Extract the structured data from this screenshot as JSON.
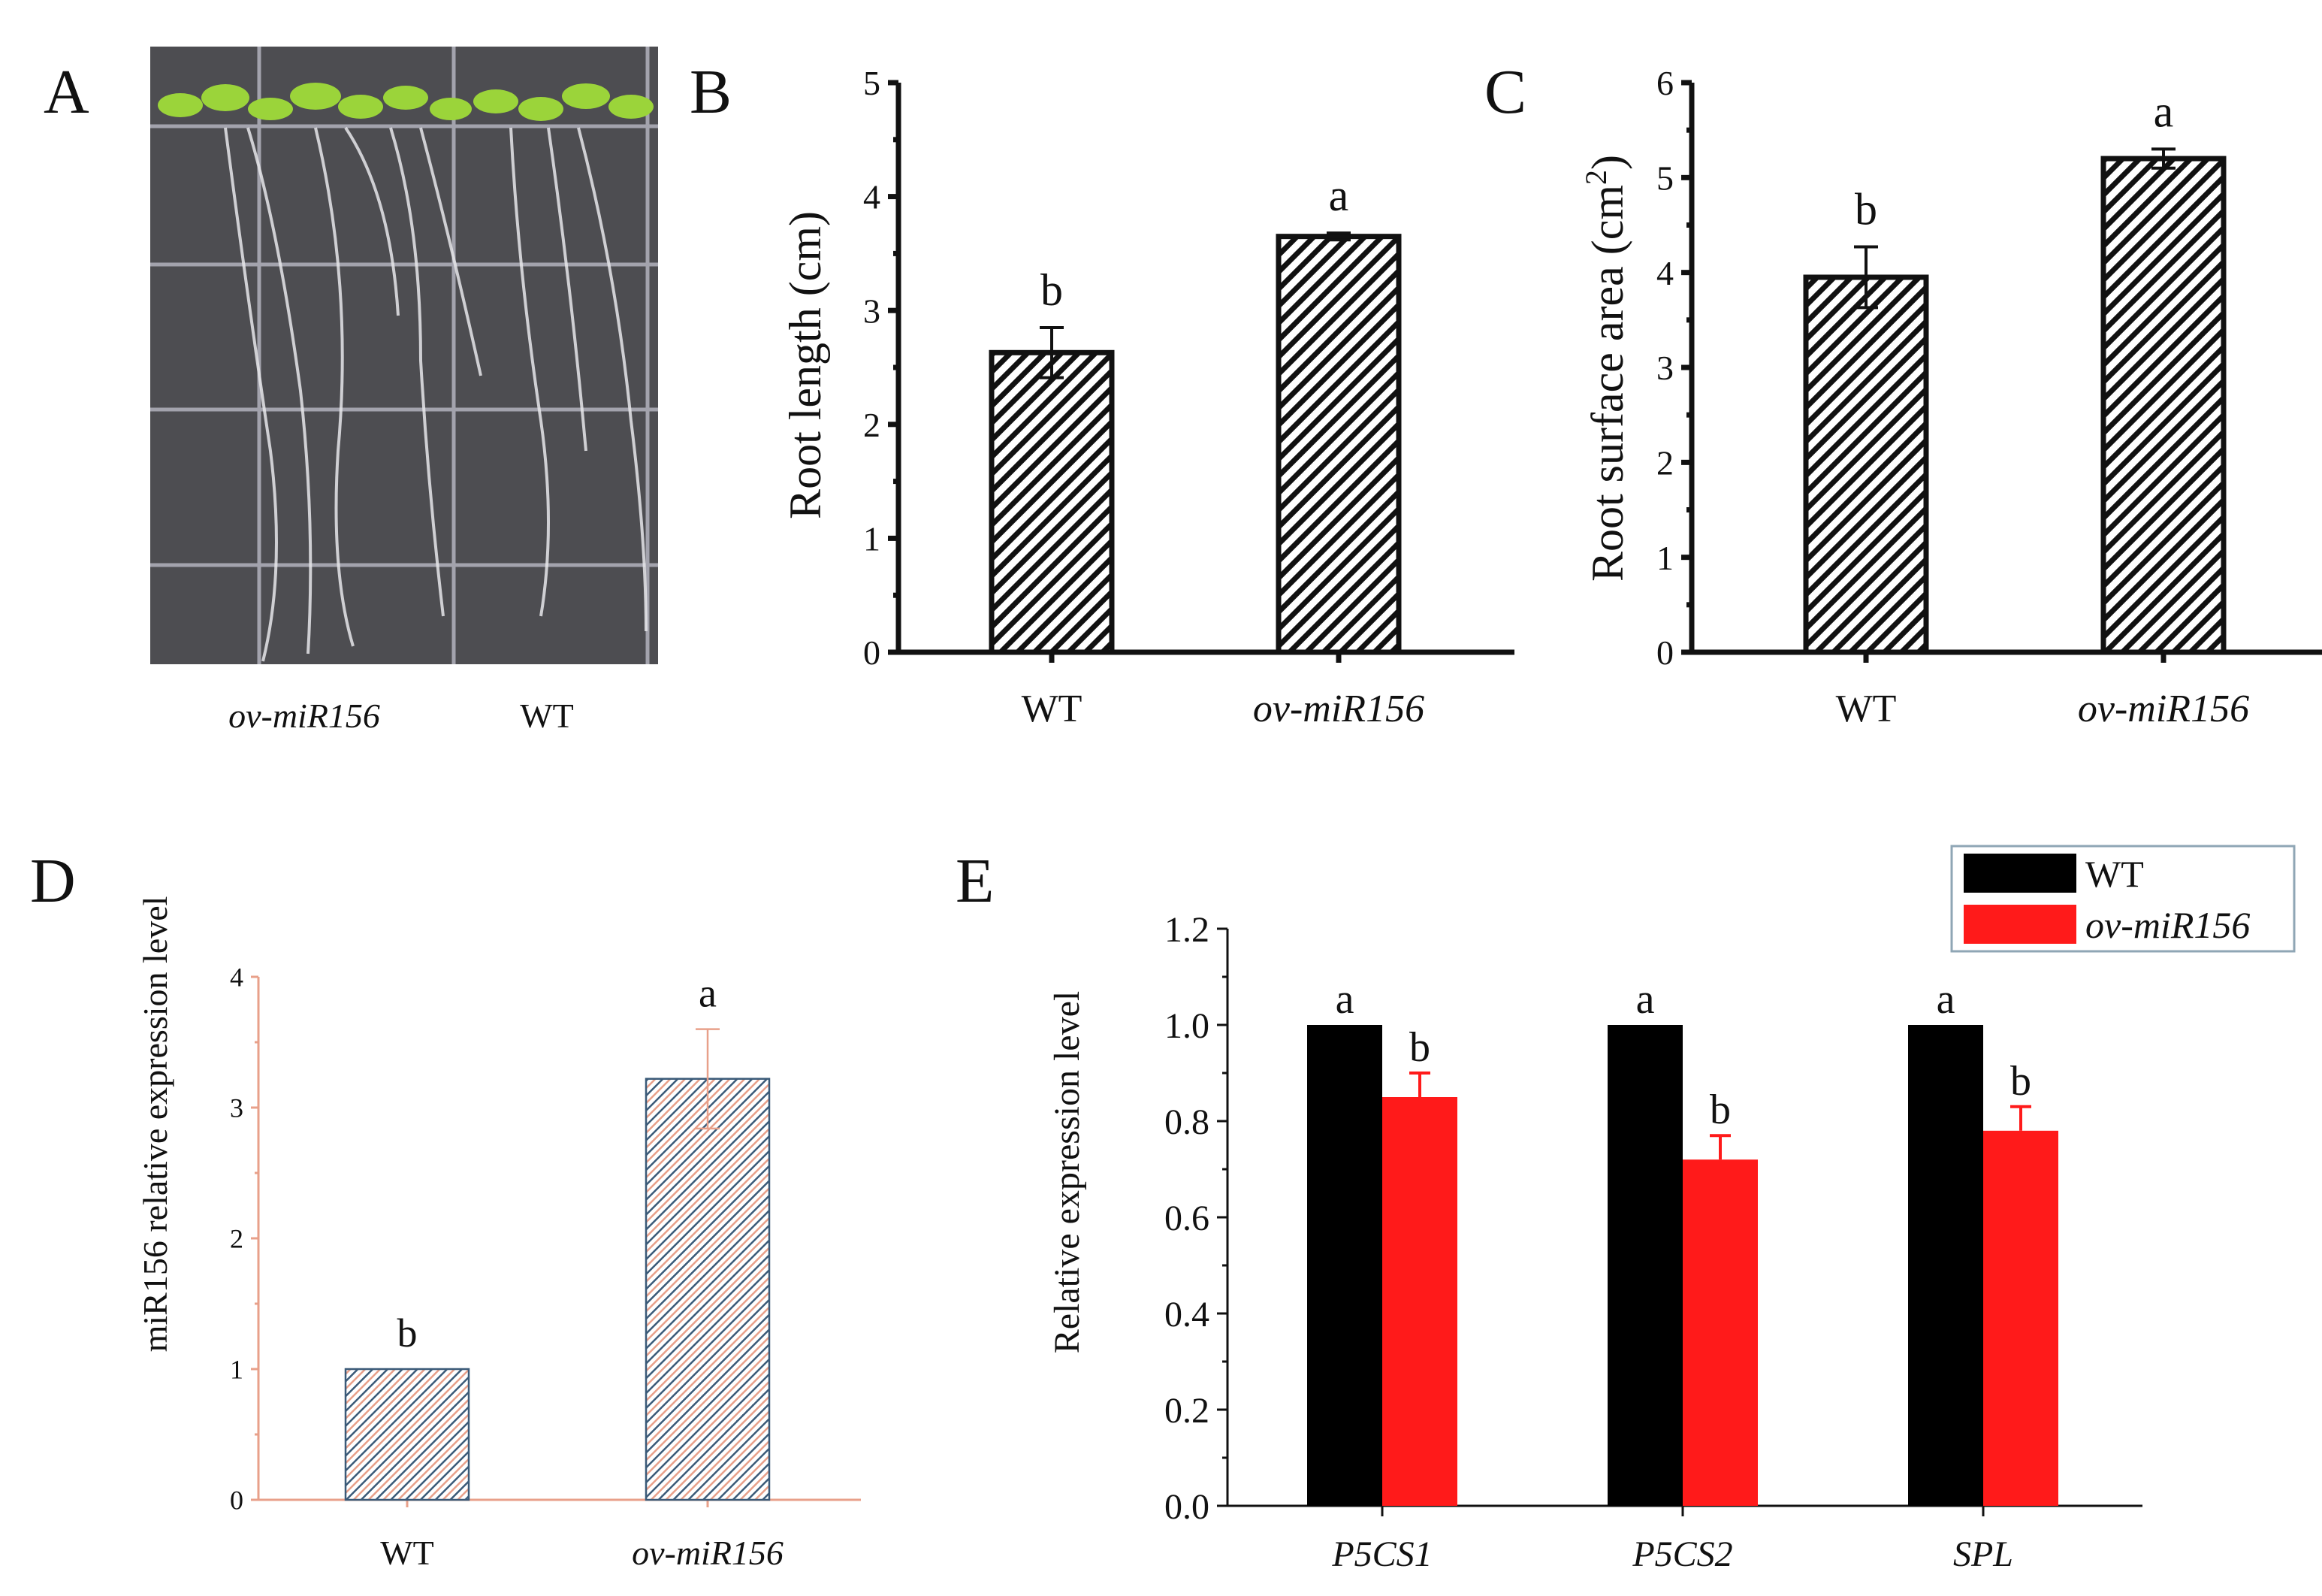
{
  "colors": {
    "wt": "#000000",
    "ov": "#ff1a1a",
    "hatch": "#111111",
    "hatch_light_a": "#3b5a78",
    "hatch_light_b": "#e8a08a",
    "axis_light": "#e8a08a",
    "photo_bg": "#4d4d51",
    "grid_line": "#b9b9c4",
    "leaf": "#9bd43a",
    "root": "#e6e6ea"
  },
  "panel_a": {
    "label": "A",
    "image_description": "Seedlings on agar plate showing root growth",
    "captions": [
      "ov-miR156",
      "WT"
    ]
  },
  "chart_data": [
    {
      "panel": "B",
      "type": "bar",
      "title": "",
      "xlabel": "",
      "ylabel": "Root length (cm)",
      "categories": [
        "WT",
        "ov-miR156"
      ],
      "values": [
        2.63,
        3.65
      ],
      "errors": [
        0.22,
        0.03
      ],
      "letters": [
        "b",
        "a"
      ],
      "ylim": [
        0,
        5
      ],
      "yticks": [
        "0",
        "1",
        "2",
        "3",
        "4",
        "5"
      ],
      "style": "hatched"
    },
    {
      "panel": "C",
      "type": "bar",
      "title": "",
      "xlabel": "",
      "ylabel": "Root surface area (cm2)",
      "ylabel_main": "Root surface area (cm",
      "ylabel_sup": "2",
      "ylabel_end": ")",
      "categories": [
        "WT",
        "ov-miR156"
      ],
      "values": [
        3.95,
        5.2
      ],
      "errors": [
        0.32,
        0.1
      ],
      "letters": [
        "b",
        "a"
      ],
      "ylim": [
        0,
        6
      ],
      "yticks": [
        "0",
        "1",
        "2",
        "3",
        "4",
        "5",
        "6"
      ],
      "style": "hatched"
    },
    {
      "panel": "D",
      "type": "bar",
      "title": "",
      "xlabel": "",
      "ylabel": "miR156 relative expression level",
      "categories": [
        "WT",
        "ov-miR156"
      ],
      "values": [
        1.0,
        3.22
      ],
      "errors": [
        0,
        0.38
      ],
      "letters": [
        "b",
        "a"
      ],
      "ylim": [
        0,
        4
      ],
      "yticks": [
        "0",
        "1",
        "2",
        "3",
        "4"
      ],
      "style": "hatched-light"
    },
    {
      "panel": "E",
      "type": "bar",
      "title": "",
      "xlabel": "",
      "ylabel": "Relative expression level",
      "categories": [
        "P5CS1",
        "P5CS2",
        "SPL"
      ],
      "series": [
        {
          "name": "WT",
          "values": [
            1.0,
            1.0,
            1.0
          ],
          "errors": [
            0,
            0,
            0
          ],
          "letters": [
            "a",
            "a",
            "a"
          ]
        },
        {
          "name": "ov-miR156",
          "values": [
            0.85,
            0.72,
            0.78
          ],
          "errors": [
            0.05,
            0.05,
            0.05
          ],
          "letters": [
            "b",
            "b",
            "b"
          ]
        }
      ],
      "ylim": [
        0,
        1.2
      ],
      "yticks": [
        "0.0",
        "0.2",
        "0.4",
        "0.6",
        "0.8",
        "1.0",
        "1.2"
      ],
      "legend": {
        "position": "top-right",
        "entries": [
          "WT",
          "ov-miR156"
        ]
      }
    }
  ]
}
